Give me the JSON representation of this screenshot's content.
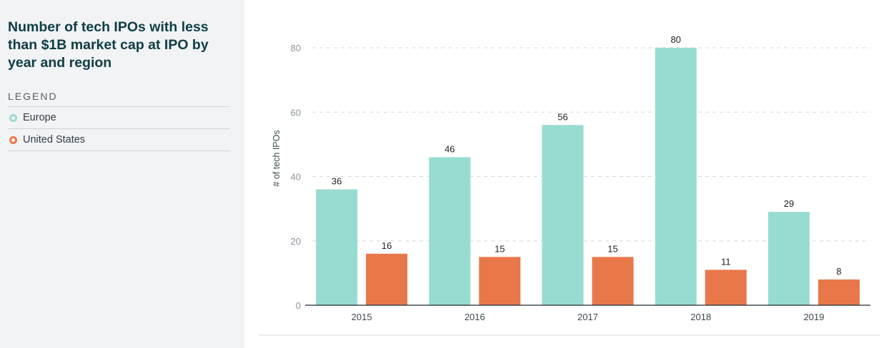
{
  "sidebar": {
    "title": "Number of tech IPOs with less than $1B market cap at IPO by year and region",
    "legend_heading": "LEGEND",
    "legend": [
      {
        "label": "Europe",
        "color": "#98dcd1"
      },
      {
        "label": "United States",
        "color": "#e8784a"
      }
    ]
  },
  "chart_data": {
    "type": "bar",
    "title": "Number of tech IPOs with less than $1B market cap at IPO by year and region",
    "xlabel": "",
    "ylabel": "# of tech IPOs",
    "categories": [
      "2015",
      "2016",
      "2017",
      "2018",
      "2019"
    ],
    "series": [
      {
        "name": "Europe",
        "color": "#98dcd1",
        "values": [
          36,
          46,
          56,
          80,
          29
        ]
      },
      {
        "name": "United States",
        "color": "#e8784a",
        "values": [
          16,
          15,
          15,
          11,
          8
        ]
      }
    ],
    "ylim": [
      0,
      80
    ],
    "yticks": [
      0,
      20,
      40,
      60,
      80
    ],
    "grid": true,
    "data_labels": true,
    "legend_position": "left sidebar"
  }
}
